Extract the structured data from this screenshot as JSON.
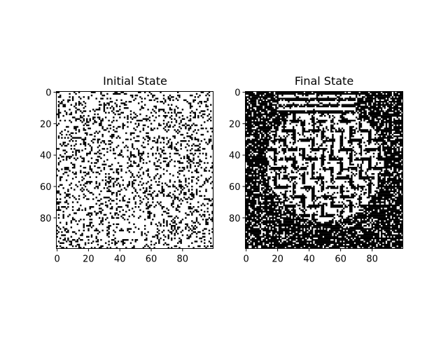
{
  "chart_data": [
    {
      "type": "heatmap",
      "title": "Initial State",
      "grid_size": [
        100,
        100
      ],
      "colormap": {
        "0": "#ffffff",
        "1": "#000000"
      },
      "black_fraction": 0.2,
      "seed": 7,
      "pattern": "uniform-random",
      "xlim": [
        0,
        99
      ],
      "ylim": [
        99,
        0
      ],
      "xticks": [
        0,
        20,
        40,
        60,
        80
      ],
      "yticks": [
        0,
        20,
        40,
        60,
        80
      ],
      "xtick_labels": [
        "0",
        "20",
        "40",
        "60",
        "80"
      ],
      "ytick_labels": [
        "0",
        "20",
        "40",
        "60",
        "80"
      ],
      "xlabel": "",
      "ylabel": "",
      "grid": false
    },
    {
      "type": "heatmap",
      "title": "Final State",
      "grid_size": [
        100,
        100
      ],
      "colormap": {
        "0": "#ffffff",
        "1": "#000000"
      },
      "black_fraction": 0.6,
      "seed": 21,
      "pattern": "clustered-stripes",
      "xlim": [
        0,
        99
      ],
      "ylim": [
        99,
        0
      ],
      "xticks": [
        0,
        20,
        40,
        60,
        80
      ],
      "yticks": [
        0,
        20,
        40,
        60,
        80
      ],
      "xtick_labels": [
        "0",
        "20",
        "40",
        "60",
        "80"
      ],
      "ytick_labels": [
        "0",
        "20",
        "40",
        "60",
        "80"
      ],
      "xlabel": "",
      "ylabel": "",
      "grid": false
    }
  ]
}
